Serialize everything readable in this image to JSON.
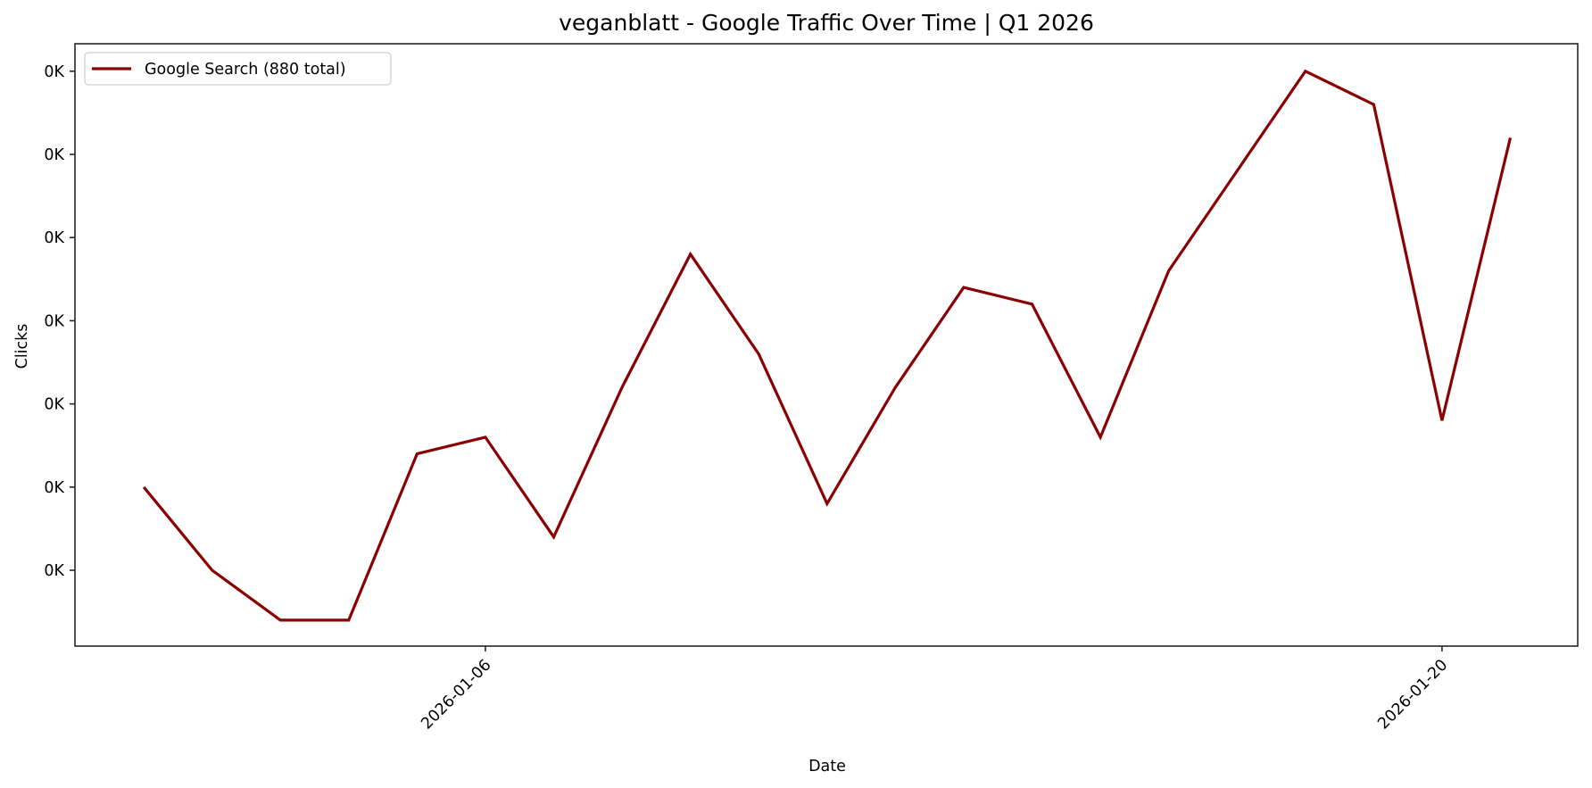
{
  "chart_data": {
    "type": "line",
    "title": "veganblatt - Google Traffic Over Time | Q1 2026",
    "xlabel": "Date",
    "ylabel": "Clicks",
    "x": [
      "2026-01-01",
      "2026-01-02",
      "2026-01-03",
      "2026-01-04",
      "2026-01-05",
      "2026-01-06",
      "2026-01-07",
      "2026-01-08",
      "2026-01-09",
      "2026-01-10",
      "2026-01-11",
      "2026-01-12",
      "2026-01-13",
      "2026-01-14",
      "2026-01-15",
      "2026-01-16",
      "2026-01-17",
      "2026-01-18",
      "2026-01-19",
      "2026-01-20",
      "2026-01-21"
    ],
    "series": [
      {
        "name": "Google Search (880 total)",
        "color": "#8b0000",
        "values": [
          35,
          30,
          27,
          27,
          37,
          38,
          32,
          41,
          49,
          43,
          34,
          41,
          47,
          46,
          38,
          48,
          54,
          60,
          58,
          39,
          56
        ]
      }
    ],
    "x_ticks": [
      {
        "label": "2026-01-06",
        "index": 5
      },
      {
        "label": "2026-01-20",
        "index": 19
      }
    ],
    "y_ticks": [
      {
        "value": 30,
        "label": "0K"
      },
      {
        "value": 35,
        "label": "0K"
      },
      {
        "value": 40,
        "label": "0K"
      },
      {
        "value": 45,
        "label": "0K"
      },
      {
        "value": 50,
        "label": "0K"
      },
      {
        "value": 55,
        "label": "0K"
      },
      {
        "value": 60,
        "label": "0K"
      }
    ],
    "ylim": [
      25.5,
      61.5
    ],
    "grid": false,
    "legend_position": "upper left"
  }
}
